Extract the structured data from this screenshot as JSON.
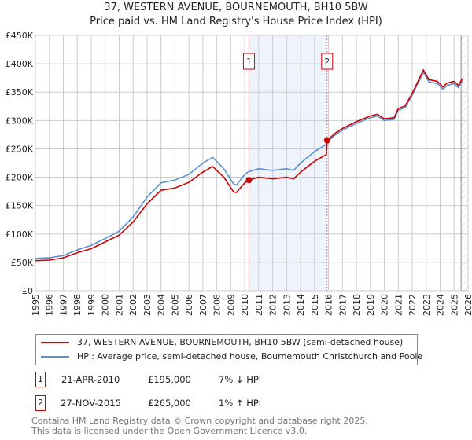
{
  "title": "37, WESTERN AVENUE, BOURNEMOUTH, BH10 5BW",
  "subtitle": "Price paid vs. HM Land Registry's House Price Index (HPI)",
  "chart_data": {
    "type": "line",
    "title": "37, WESTERN AVENUE, BOURNEMOUTH, BH10 5BW",
    "xlim": [
      1995,
      2026
    ],
    "ylim": [
      0,
      450000
    ],
    "yticks": [
      0,
      50000,
      100000,
      150000,
      200000,
      250000,
      300000,
      350000,
      400000,
      450000
    ],
    "ytick_labels": [
      "£0",
      "£50K",
      "£100K",
      "£150K",
      "£200K",
      "£250K",
      "£300K",
      "£350K",
      "£400K",
      "£450K"
    ],
    "xticks": [
      1995,
      1996,
      1997,
      1998,
      1999,
      2000,
      2001,
      2002,
      2003,
      2004,
      2005,
      2006,
      2007,
      2008,
      2009,
      2010,
      2011,
      2012,
      2013,
      2014,
      2015,
      2016,
      2017,
      2018,
      2019,
      2020,
      2021,
      2022,
      2023,
      2024,
      2025,
      2026
    ],
    "grid": true,
    "shaded_range": [
      2010.3,
      2015.9
    ],
    "hatched_from": 2025.5,
    "series": [
      {
        "name": "37, WESTERN AVENUE, BOURNEMOUTH, BH10 5BW (semi-detached house)",
        "color": "#cc0000",
        "x": [
          1995,
          1996,
          1997,
          1998,
          1999,
          2000,
          2001,
          2002,
          2003,
          2004,
          2005,
          2006,
          2007,
          2007.7,
          2008.5,
          2009.2,
          2009.4,
          2010,
          2010.3,
          2011,
          2012,
          2013,
          2013.5,
          2014,
          2015,
          2015.85,
          2015.9,
          2016.5,
          2017,
          2018,
          2019,
          2019.5,
          2020,
          2020.7,
          2021,
          2021.5,
          2022,
          2022.8,
          2023.2,
          2023.8,
          2024.2,
          2024.5,
          2025,
          2025.3,
          2025.6
        ],
        "y": [
          53000,
          54000,
          58000,
          67000,
          74000,
          86000,
          98000,
          121000,
          153000,
          177000,
          181000,
          191000,
          209000,
          219000,
          200000,
          174000,
          173000,
          190000,
          195000,
          200000,
          197000,
          200000,
          197000,
          209000,
          228000,
          240000,
          265000,
          278000,
          286000,
          298000,
          308000,
          311000,
          303000,
          305000,
          321000,
          326000,
          348000,
          389000,
          372000,
          369000,
          359000,
          366000,
          369000,
          362000,
          374000
        ]
      },
      {
        "name": "HPI: Average price, semi-detached house, Bournemouth Christchurch and Poole",
        "color": "#5b8fd0",
        "x": [
          1995,
          1996,
          1997,
          1998,
          1999,
          2000,
          2001,
          2002,
          2003,
          2004,
          2005,
          2006,
          2007,
          2007.7,
          2008.5,
          2009.2,
          2009.4,
          2010,
          2010.3,
          2011,
          2012,
          2013,
          2013.5,
          2014,
          2015,
          2015.85,
          2015.9,
          2016.5,
          2017,
          2018,
          2019,
          2019.5,
          2020,
          2020.7,
          2021,
          2021.5,
          2022,
          2022.8,
          2023.2,
          2023.8,
          2024.2,
          2024.5,
          2025,
          2025.3,
          2025.6
        ],
        "y": [
          57000,
          58000,
          62000,
          72000,
          80000,
          92000,
          105000,
          130000,
          165000,
          190000,
          195000,
          205000,
          225000,
          235000,
          215000,
          188000,
          186000,
          205000,
          210000,
          215000,
          212000,
          215000,
          212000,
          225000,
          245000,
          258000,
          262000,
          275000,
          283000,
          295000,
          305000,
          308000,
          300000,
          302000,
          318000,
          323000,
          345000,
          385000,
          368000,
          365000,
          355000,
          362000,
          365000,
          358000,
          370000
        ]
      }
    ],
    "annotations": [
      {
        "label": "1",
        "x": 2010.3,
        "y": 195000
      },
      {
        "label": "2",
        "x": 2015.9,
        "y": 265000
      }
    ]
  },
  "legend": [
    {
      "label": "37, WESTERN AVENUE, BOURNEMOUTH, BH10 5BW (semi-detached house)",
      "color": "#cc0000"
    },
    {
      "label": "HPI: Average price, semi-detached house, Bournemouth Christchurch and Poole",
      "color": "#5b8fd0"
    }
  ],
  "transactions": [
    {
      "num": "1",
      "date": "21-APR-2010",
      "price": "£195,000",
      "hpi": "7% ↓ HPI"
    },
    {
      "num": "2",
      "date": "27-NOV-2015",
      "price": "£265,000",
      "hpi": "1% ↑ HPI"
    }
  ],
  "footer": [
    "Contains HM Land Registry data © Crown copyright and database right 2025.",
    "This data is licensed under the Open Government Licence v3.0."
  ]
}
